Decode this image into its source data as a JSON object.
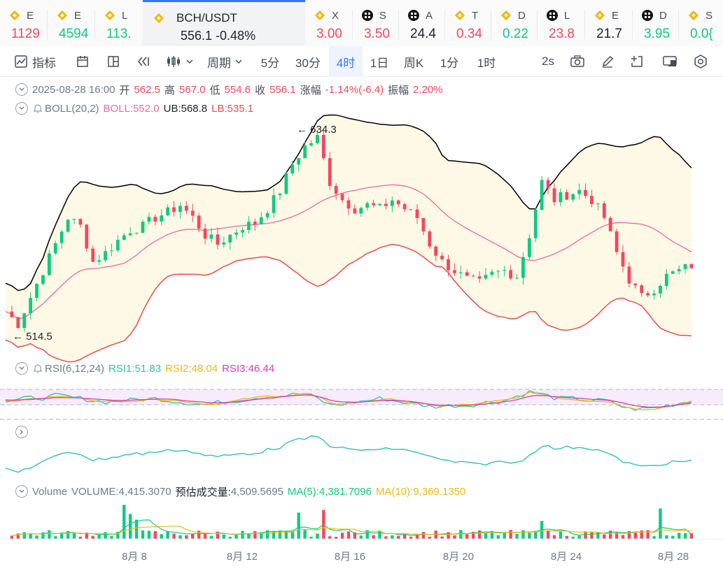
{
  "tickers": [
    {
      "name": "E",
      "price": "1129",
      "dir": "dn",
      "icon": "coin-icon"
    },
    {
      "name": "E",
      "price": "4594",
      "dir": "up",
      "icon": "coin-icon"
    },
    {
      "name": "L",
      "price": "113.",
      "dir": "up",
      "icon": "coin-icon"
    },
    {
      "name": "BCH/USDT",
      "price": "556.1  -0.48%",
      "dir": "nt",
      "icon": "coin-icon",
      "active": true
    },
    {
      "name": "X",
      "price": "3.00",
      "dir": "dn",
      "icon": "coin-icon"
    },
    {
      "name": "S",
      "price": "3.50",
      "dir": "dn",
      "icon": "ball-icon"
    },
    {
      "name": "A",
      "price": "24.4",
      "dir": "nt",
      "icon": "ball-icon"
    },
    {
      "name": "T",
      "price": "0.34",
      "dir": "dn",
      "icon": "coin-icon"
    },
    {
      "name": "D",
      "price": "0.22",
      "dir": "up",
      "icon": "coin-icon"
    },
    {
      "name": "L",
      "price": "23.8",
      "dir": "dn",
      "icon": "ball-icon"
    },
    {
      "name": "E",
      "price": "21.7",
      "dir": "nt",
      "icon": "coin-icon"
    },
    {
      "name": "D",
      "price": "3.95",
      "dir": "up",
      "icon": "ball-icon"
    },
    {
      "name": "S",
      "price": "0.0{",
      "dir": "up",
      "icon": "coin-icon"
    }
  ],
  "toolbar": {
    "indicators": "指标",
    "period": "周期",
    "intervals": [
      "5分",
      "30分",
      "4时",
      "1日",
      "周K",
      "1分",
      "1时"
    ],
    "selected_interval": "4时",
    "refresh": "2s"
  },
  "ohlc": {
    "date": "2025-08-28 16:00",
    "open_label": "开",
    "open": "562.5",
    "high_label": "高",
    "high": "567.0",
    "low_label": "低",
    "low": "554.6",
    "close_label": "收",
    "close": "556.1",
    "change_label": "涨幅",
    "change": "-1.14%(-6.4)",
    "amp_label": "振幅",
    "amp": "2.20%"
  },
  "boll": {
    "name": "BOLL(20,2)",
    "boll": "BOLL:552.0",
    "ub": "UB:568.8",
    "lb": "LB:535.1"
  },
  "rsi": {
    "name": "RSI(6,12,24)",
    "rsi1": "RSI1:51.83",
    "rsi2": "RSI2:48.04",
    "rsi3": "RSI3:46.44"
  },
  "volume": {
    "name": "Volume",
    "vol": "VOLUME:4,415.3070",
    "est_label": "预估成交量:",
    "est": "4,509.5695",
    "ma5": "MA(5):4,381.7096",
    "ma10": "MA(10):9,369.1350"
  },
  "colors": {
    "up": "#0ecb81",
    "down": "#f6465d",
    "boll_mid": "#f0679e",
    "ub": "#000000",
    "lb": "#f0484c",
    "band": "#fdf9e6",
    "rsi1": "#2bc4b0",
    "rsi2": "#f0b90b",
    "rsi3": "#d63ac0",
    "rsi_band": "#f6ecfc",
    "accent": "#3875f6"
  },
  "chart_data": {
    "type": "line",
    "title": "BCH/USDT",
    "x_ticks": [
      "8月 8",
      "8月 12",
      "8月 16",
      "8月 20",
      "8月 24",
      "8月 28"
    ],
    "max_label": "634.3",
    "min_label": "514.5",
    "price_high": 634.3,
    "price_low": 514.5,
    "close_path": [
      [
        0,
        532
      ],
      [
        2,
        525
      ],
      [
        4,
        540
      ],
      [
        6,
        555
      ],
      [
        8,
        570
      ],
      [
        10,
        585
      ],
      [
        12,
        580
      ],
      [
        14,
        560
      ],
      [
        16,
        565
      ],
      [
        18,
        572
      ],
      [
        20,
        578
      ],
      [
        22,
        580
      ],
      [
        24,
        585
      ],
      [
        26,
        588
      ],
      [
        28,
        592
      ],
      [
        30,
        585
      ],
      [
        32,
        575
      ],
      [
        34,
        570
      ],
      [
        36,
        575
      ],
      [
        38,
        580
      ],
      [
        40,
        582
      ],
      [
        42,
        590
      ],
      [
        44,
        600
      ],
      [
        46,
        615
      ],
      [
        48,
        625
      ],
      [
        50,
        630
      ],
      [
        52,
        605
      ],
      [
        54,
        595
      ],
      [
        56,
        590
      ],
      [
        58,
        592
      ],
      [
        60,
        590
      ],
      [
        62,
        595
      ],
      [
        64,
        590
      ],
      [
        66,
        585
      ],
      [
        68,
        570
      ],
      [
        70,
        560
      ],
      [
        72,
        555
      ],
      [
        74,
        550
      ],
      [
        76,
        548
      ],
      [
        78,
        553
      ],
      [
        80,
        555
      ],
      [
        82,
        552
      ],
      [
        84,
        575
      ],
      [
        86,
        605
      ],
      [
        88,
        595
      ],
      [
        90,
        598
      ],
      [
        92,
        600
      ],
      [
        94,
        595
      ],
      [
        96,
        585
      ],
      [
        98,
        565
      ],
      [
        100,
        550
      ],
      [
        102,
        540
      ],
      [
        104,
        545
      ],
      [
        106,
        552
      ],
      [
        108,
        555
      ],
      [
        110,
        558
      ]
    ],
    "rsi_path": [
      [
        0,
        50
      ],
      [
        8,
        60
      ],
      [
        16,
        48
      ],
      [
        24,
        55
      ],
      [
        32,
        42
      ],
      [
        40,
        58
      ],
      [
        48,
        65
      ],
      [
        52,
        40
      ],
      [
        60,
        55
      ],
      [
        68,
        38
      ],
      [
        74,
        42
      ],
      [
        80,
        52
      ],
      [
        84,
        70
      ],
      [
        88,
        55
      ],
      [
        96,
        50
      ],
      [
        100,
        32
      ],
      [
        104,
        35
      ],
      [
        110,
        51.83
      ]
    ],
    "volume_values": [
      4415.307
    ],
    "volume_ma5": 4381.7096,
    "volume_ma10": 9369.135
  }
}
